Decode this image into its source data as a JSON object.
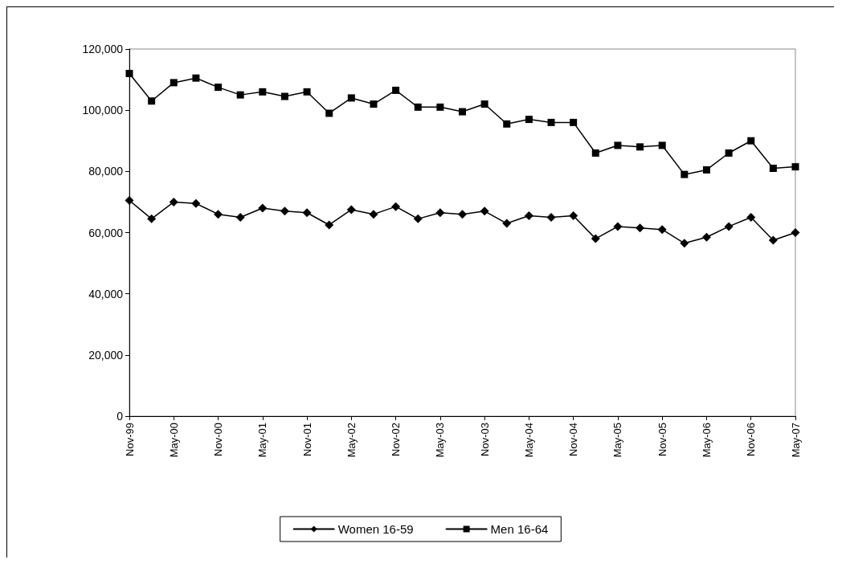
{
  "chart_data": {
    "type": "line",
    "categories": [
      "Nov-99",
      null,
      "May-00",
      null,
      "Nov-00",
      null,
      "May-01",
      null,
      "Nov-01",
      null,
      "May-02",
      null,
      "Nov-02",
      null,
      "May-03",
      null,
      "Nov-03",
      null,
      "May-04",
      null,
      "Nov-04",
      null,
      "May-05",
      null,
      "Nov-05",
      null,
      "May-06",
      null,
      "Nov-06",
      null,
      "May-07"
    ],
    "series": [
      {
        "name": "Women 16-59",
        "color": "#000000",
        "marker": "diamond",
        "values": [
          70500,
          64500,
          70000,
          69500,
          66000,
          65000,
          68000,
          67000,
          66500,
          62500,
          67500,
          66000,
          68500,
          64500,
          66500,
          66000,
          67000,
          63000,
          65500,
          65000,
          65500,
          58000,
          62000,
          61500,
          61000,
          56500,
          58500,
          62000,
          65000,
          57500,
          60000
        ]
      },
      {
        "name": "Men 16-64",
        "color": "#000000",
        "marker": "square",
        "values": [
          112000,
          103000,
          109000,
          110500,
          107500,
          105000,
          106000,
          104500,
          106000,
          99000,
          104000,
          102000,
          106500,
          101000,
          101000,
          99500,
          102000,
          95500,
          97000,
          96000,
          96000,
          86000,
          88500,
          88000,
          88500,
          79000,
          80500,
          86000,
          90000,
          81000,
          81500
        ]
      }
    ],
    "ylim": [
      0,
      120000
    ],
    "yticks": [
      {
        "value": 0,
        "label": "0"
      },
      {
        "value": 20000,
        "label": "20,000"
      },
      {
        "value": 40000,
        "label": "40,000"
      },
      {
        "value": 60000,
        "label": "60,000"
      },
      {
        "value": 80000,
        "label": "80,000"
      },
      {
        "value": 100000,
        "label": "100,000"
      },
      {
        "value": 120000,
        "label": "120,000"
      }
    ],
    "grid": false,
    "legend": "bottom",
    "line_style": "solid"
  }
}
